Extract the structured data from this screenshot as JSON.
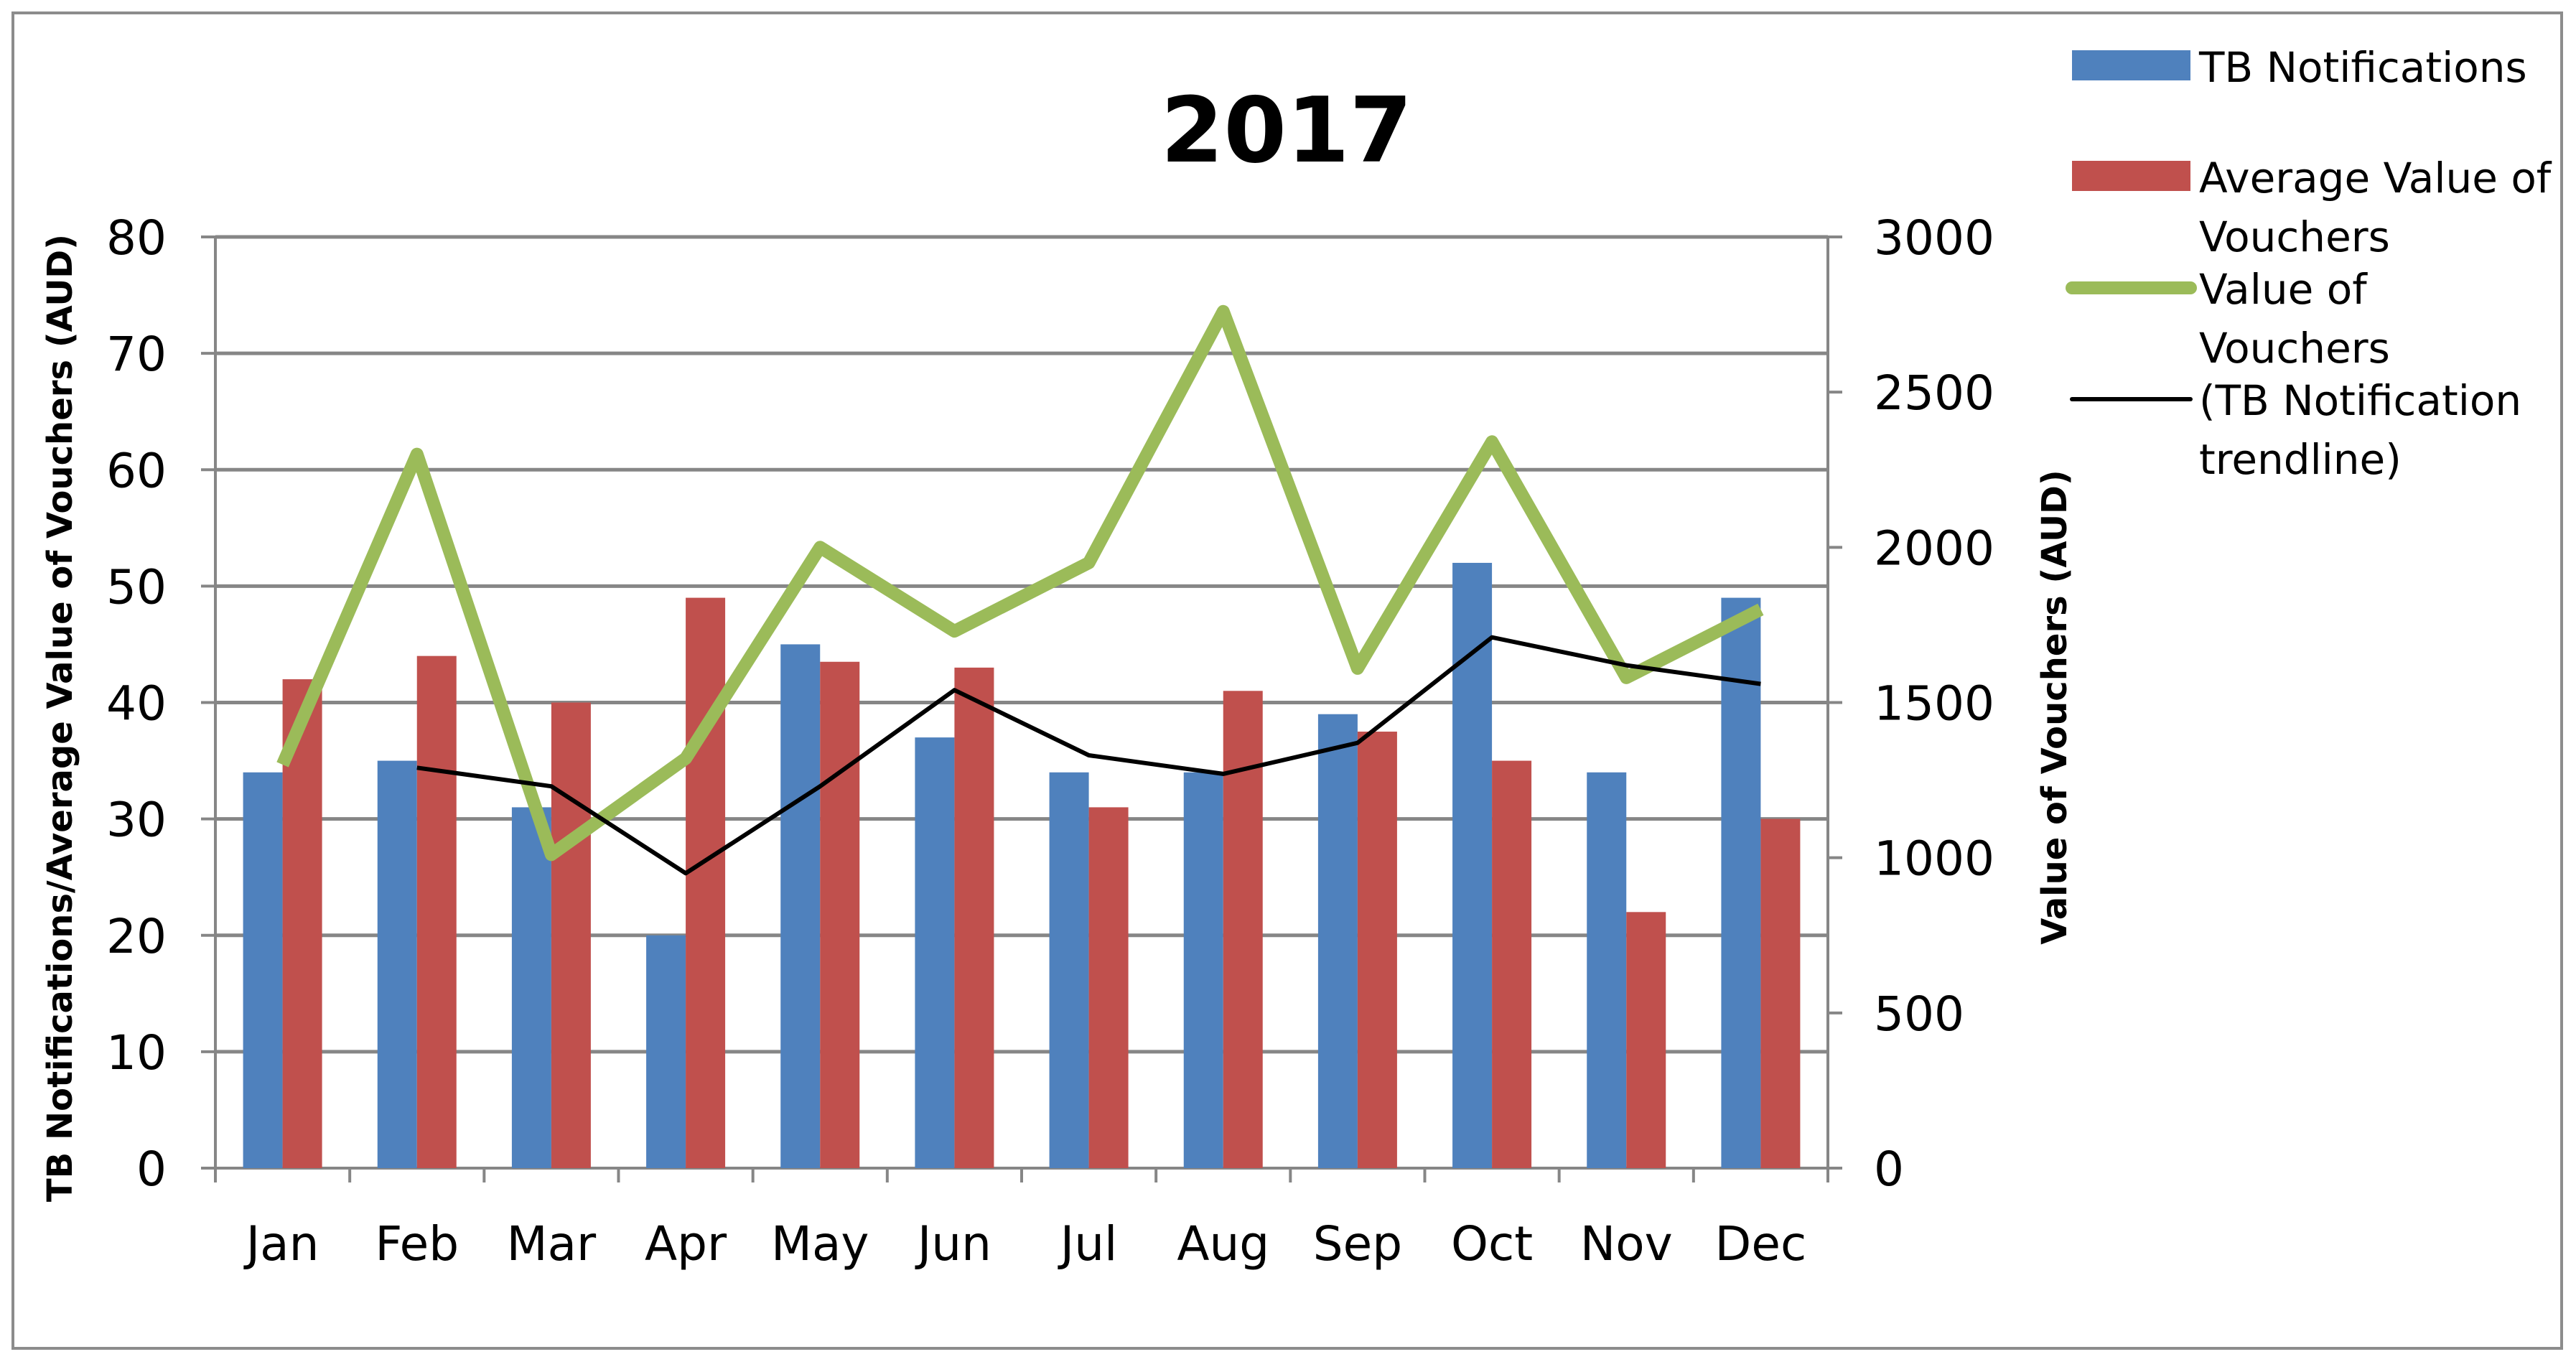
{
  "chart_data": {
    "type": "bar",
    "title": "2017",
    "categories": [
      "Jan",
      "Feb",
      "Mar",
      "Apr",
      "May",
      "Jun",
      "Jul",
      "Aug",
      "Sep",
      "Oct",
      "Nov",
      "Dec"
    ],
    "left_axis": {
      "label": "TB Notifications/Average Value of Vouchers (AUD)",
      "range": [
        0,
        80
      ],
      "ticks": [
        "0",
        "10",
        "20",
        "30",
        "40",
        "50",
        "60",
        "70",
        "80"
      ]
    },
    "right_axis": {
      "label": "Value of Vouchers (AUD)",
      "range": [
        0,
        3000
      ],
      "ticks": [
        "0",
        "500",
        "1000",
        "1500",
        "2000",
        "2500",
        "3000"
      ]
    },
    "grid": true,
    "legend_position": "right",
    "series": [
      {
        "name": "TB Notifications",
        "type": "bar",
        "axis": "left",
        "color": "#4F81BD",
        "values": [
          34,
          35,
          31,
          20,
          45,
          37,
          34,
          34,
          39,
          52,
          34,
          49
        ]
      },
      {
        "name": "Average Value of Vouchers",
        "type": "bar",
        "axis": "left",
        "color": "#C0504D",
        "values": [
          42,
          44,
          40,
          49,
          43.5,
          43,
          31,
          41,
          37.5,
          35,
          22,
          30
        ]
      },
      {
        "name": "Value of Vouchers",
        "type": "line",
        "axis": "right",
        "color": "#9BBB59",
        "values": [
          1300,
          2300,
          1010,
          1320,
          2000,
          1730,
          1950,
          2760,
          1610,
          2340,
          1580,
          1800
        ]
      },
      {
        "name": "(TB Notification trendline)",
        "type": "line",
        "axis": "right",
        "color": "#000000",
        "start_index": 1,
        "values": [
          null,
          1290,
          1230,
          950,
          1230,
          1540,
          1330,
          1270,
          1370,
          1710,
          1620,
          1560
        ]
      }
    ]
  }
}
